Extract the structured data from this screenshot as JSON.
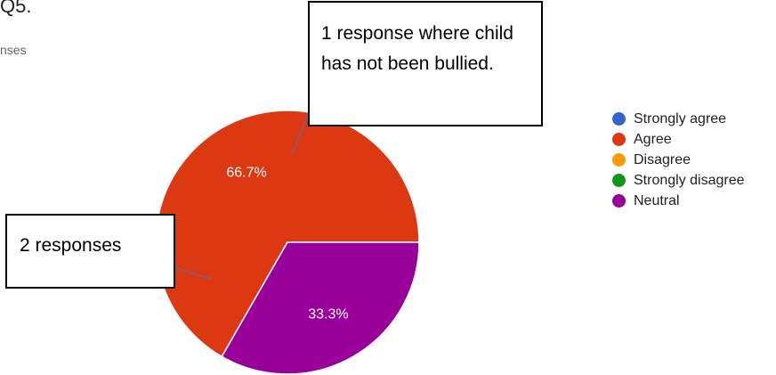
{
  "title": "Q5.",
  "subtitle": "nses",
  "chart_data": {
    "type": "pie",
    "categories": [
      "Strongly agree",
      "Agree",
      "Disagree",
      "Strongly disagree",
      "Neutral"
    ],
    "values": [
      0,
      66.7,
      0,
      0,
      33.3
    ],
    "labels": [
      "",
      "66.7%",
      "",
      "",
      "33.3%"
    ],
    "colors": [
      "#3366cc",
      "#dc3912",
      "#ff9900",
      "#109618",
      "#990099"
    ],
    "legend_position": "right"
  },
  "annotations": {
    "neutral_callout": "1 response where child has not been bullied.",
    "agree_callout": "2 responses"
  }
}
